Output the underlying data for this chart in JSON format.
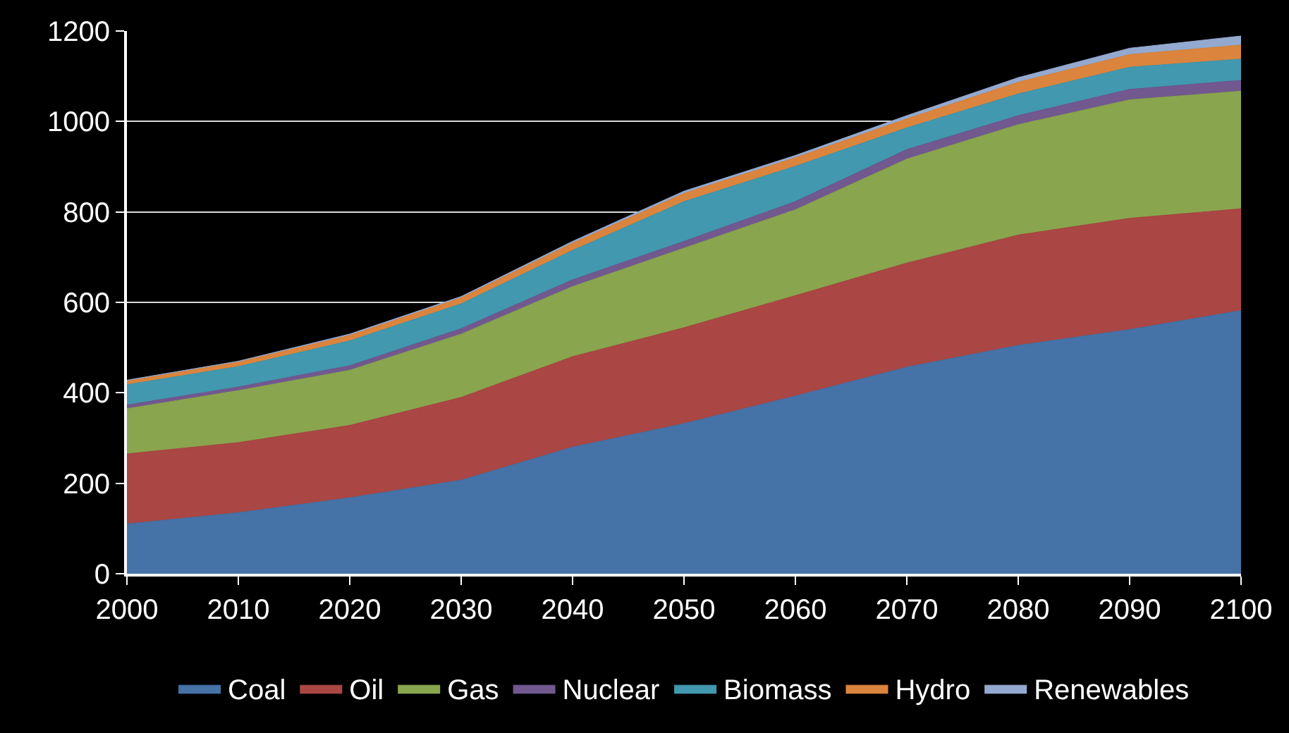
{
  "chart_data": {
    "type": "area",
    "stacked": true,
    "x": [
      2000,
      2010,
      2020,
      2030,
      2040,
      2050,
      2060,
      2070,
      2080,
      2090,
      2100
    ],
    "xlim": [
      2000,
      2100
    ],
    "xticks": [
      2000,
      2010,
      2020,
      2030,
      2040,
      2050,
      2060,
      2070,
      2080,
      2090,
      2100
    ],
    "ylim": [
      0,
      1200
    ],
    "yticks": [
      0,
      200,
      400,
      600,
      800,
      1000,
      1200
    ],
    "grid": "y",
    "legend": "bottom",
    "series": [
      {
        "name": "Coal",
        "color": "#4572a7",
        "values": [
          110,
          135,
          168,
          207,
          280,
          332,
          393,
          457,
          505,
          540,
          582
        ]
      },
      {
        "name": "Oil",
        "color": "#aa4643",
        "values": [
          155,
          155,
          160,
          183,
          200,
          212,
          222,
          230,
          244,
          246,
          225
        ]
      },
      {
        "name": "Gas",
        "color": "#89a54e",
        "values": [
          100,
          115,
          122,
          140,
          155,
          176,
          190,
          230,
          244,
          262,
          260
        ]
      },
      {
        "name": "Nuclear",
        "color": "#71588f",
        "values": [
          8,
          8,
          10,
          12,
          15,
          15,
          18,
          21,
          20,
          23,
          24
        ]
      },
      {
        "name": "Biomass",
        "color": "#4198af",
        "values": [
          45,
          45,
          55,
          55,
          65,
          88,
          78,
          48,
          48,
          49,
          47
        ]
      },
      {
        "name": "Hydro",
        "color": "#db843d",
        "values": [
          8,
          10,
          12,
          13,
          16,
          18,
          19,
          20,
          26,
          28,
          31
        ]
      },
      {
        "name": "Renewables",
        "color": "#93a9cf",
        "values": [
          2,
          2,
          3,
          3,
          4,
          5,
          5,
          7,
          10,
          14,
          20
        ]
      }
    ]
  }
}
